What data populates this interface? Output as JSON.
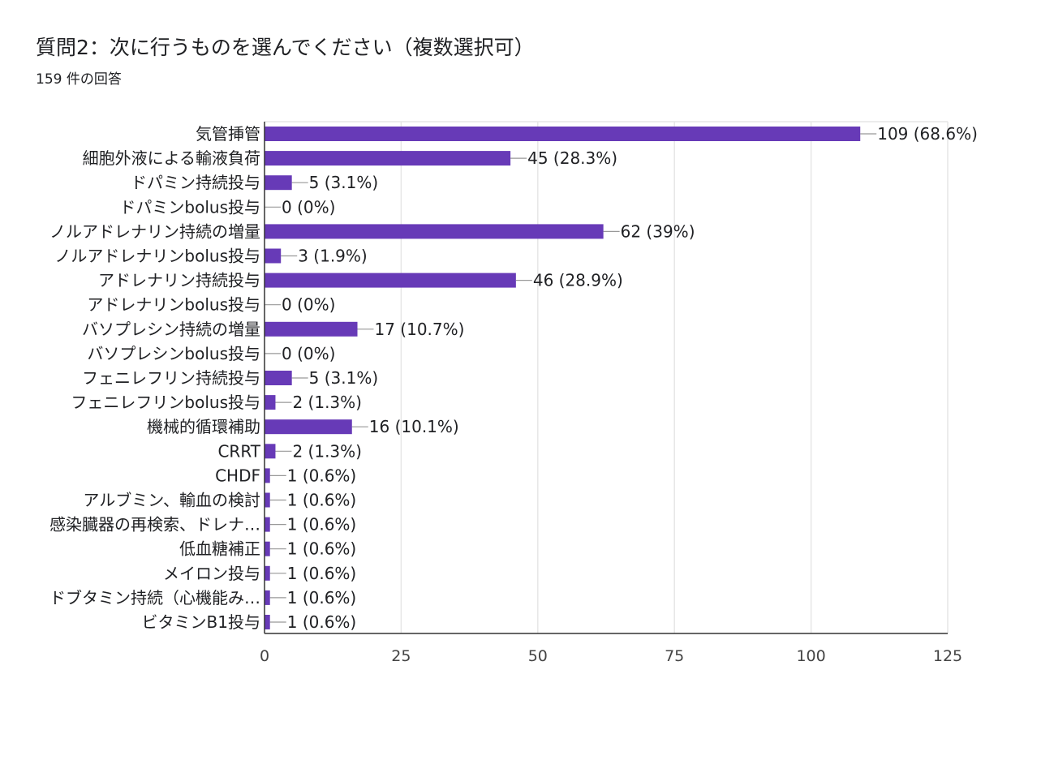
{
  "header": {
    "title": "質問2：次に行うものを選んでください（複数選択可）",
    "subtitle": "159 件の回答"
  },
  "colors": {
    "bar": "#673ab7",
    "grid": "#e6e6e6",
    "axis": "#333333",
    "leader": "#999999",
    "text": "#202124",
    "tick_text": "#444444"
  },
  "chart_data": {
    "type": "bar",
    "orientation": "horizontal",
    "title": "質問2：次に行うものを選んでください（複数選択可）",
    "subtitle": "159 件の回答",
    "xlim": [
      0,
      125
    ],
    "xticks": [
      0,
      25,
      50,
      75,
      100,
      125
    ],
    "grid": true,
    "categories": [
      "気管挿管",
      "細胞外液による輸液負荷",
      "ドパミン持続投与",
      "ドパミンbolus投与",
      "ノルアドレナリン持続の増量",
      "ノルアドレナリンbolus投与",
      "アドレナリン持続投与",
      "アドレナリンbolus投与",
      "バソプレシン持続の増量",
      "バソプレシンbolus投与",
      "フェニレフリン持続投与",
      "フェニレフリンbolus投与",
      "機械的循環補助",
      "CRRT",
      "CHDF",
      "アルブミン、輸血の検討",
      "感染臓器の再検索、ドレナ…",
      "低血糖補正",
      "メイロン投与",
      "ドブタミン持続（心機能み…",
      "ビタミンB1投与"
    ],
    "values": [
      109,
      45,
      5,
      0,
      62,
      3,
      46,
      0,
      17,
      0,
      5,
      2,
      16,
      2,
      1,
      1,
      1,
      1,
      1,
      1,
      1
    ],
    "data_labels": [
      "109 (68.6%)",
      "45 (28.3%)",
      "5 (3.1%)",
      "0 (0%)",
      "62 (39%)",
      "3 (1.9%)",
      "46 (28.9%)",
      "0 (0%)",
      "17 (10.7%)",
      "0 (0%)",
      "5 (3.1%)",
      "2 (1.3%)",
      "16 (10.1%)",
      "2 (1.3%)",
      "1 (0.6%)",
      "1 (0.6%)",
      "1 (0.6%)",
      "1 (0.6%)",
      "1 (0.6%)",
      "1 (0.6%)",
      "1 (0.6%)"
    ]
  }
}
